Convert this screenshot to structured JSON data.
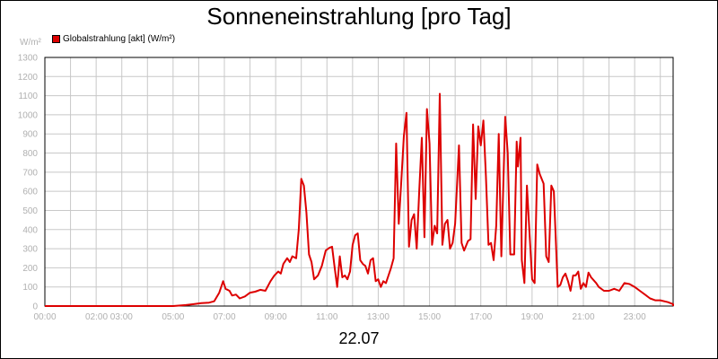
{
  "chart_data": {
    "type": "line",
    "title": "Sonneneinstrahlung [pro Tag]",
    "unit_label": "W/m²",
    "xlabel": "22.07",
    "ylabel": "",
    "ylim": [
      0,
      1300
    ],
    "yticks": [
      0,
      100,
      200,
      300,
      400,
      500,
      600,
      700,
      800,
      900,
      1000,
      1100,
      1200,
      1300
    ],
    "xlim": [
      0,
      24.5
    ],
    "xtick_labels": [
      "00:00",
      "02:00 03:00",
      "05:00",
      "07:00",
      "09:00",
      "11:00",
      "13:00",
      "15:00",
      "17:00",
      "19:00",
      "21:00",
      "23:00"
    ],
    "xtick_hours": [
      0,
      2.5,
      5,
      7,
      9,
      11,
      13,
      15,
      17,
      19,
      21,
      23
    ],
    "grid": true,
    "legend_position": "top-left",
    "series": [
      {
        "name": "Globalstrahlung [akt] (W/m²)",
        "color": "#dd0000",
        "points": [
          [
            0,
            0
          ],
          [
            5,
            0
          ],
          [
            5.5,
            5
          ],
          [
            5.8,
            10
          ],
          [
            6.1,
            15
          ],
          [
            6.4,
            18
          ],
          [
            6.6,
            25
          ],
          [
            6.8,
            70
          ],
          [
            6.95,
            130
          ],
          [
            7.05,
            90
          ],
          [
            7.2,
            80
          ],
          [
            7.3,
            55
          ],
          [
            7.45,
            60
          ],
          [
            7.6,
            40
          ],
          [
            7.8,
            50
          ],
          [
            8.0,
            70
          ],
          [
            8.2,
            75
          ],
          [
            8.4,
            85
          ],
          [
            8.6,
            80
          ],
          [
            8.8,
            130
          ],
          [
            8.95,
            160
          ],
          [
            9.1,
            180
          ],
          [
            9.2,
            170
          ],
          [
            9.3,
            220
          ],
          [
            9.45,
            250
          ],
          [
            9.55,
            230
          ],
          [
            9.65,
            260
          ],
          [
            9.8,
            250
          ],
          [
            9.9,
            400
          ],
          [
            10.0,
            665
          ],
          [
            10.1,
            630
          ],
          [
            10.2,
            490
          ],
          [
            10.3,
            270
          ],
          [
            10.4,
            230
          ],
          [
            10.5,
            140
          ],
          [
            10.65,
            160
          ],
          [
            10.8,
            210
          ],
          [
            10.95,
            290
          ],
          [
            11.1,
            305
          ],
          [
            11.2,
            310
          ],
          [
            11.3,
            200
          ],
          [
            11.4,
            100
          ],
          [
            11.5,
            260
          ],
          [
            11.6,
            150
          ],
          [
            11.7,
            160
          ],
          [
            11.8,
            140
          ],
          [
            11.9,
            180
          ],
          [
            12.0,
            320
          ],
          [
            12.1,
            370
          ],
          [
            12.2,
            380
          ],
          [
            12.3,
            240
          ],
          [
            12.4,
            220
          ],
          [
            12.5,
            210
          ],
          [
            12.6,
            170
          ],
          [
            12.7,
            240
          ],
          [
            12.8,
            250
          ],
          [
            12.9,
            130
          ],
          [
            13.0,
            140
          ],
          [
            13.1,
            100
          ],
          [
            13.2,
            130
          ],
          [
            13.3,
            120
          ],
          [
            13.5,
            200
          ],
          [
            13.6,
            250
          ],
          [
            13.7,
            850
          ],
          [
            13.8,
            430
          ],
          [
            13.9,
            650
          ],
          [
            14.0,
            890
          ],
          [
            14.1,
            1010
          ],
          [
            14.2,
            310
          ],
          [
            14.3,
            450
          ],
          [
            14.4,
            480
          ],
          [
            14.5,
            300
          ],
          [
            14.6,
            600
          ],
          [
            14.7,
            880
          ],
          [
            14.8,
            360
          ],
          [
            14.9,
            1030
          ],
          [
            15.0,
            850
          ],
          [
            15.1,
            320
          ],
          [
            15.2,
            420
          ],
          [
            15.3,
            380
          ],
          [
            15.4,
            1110
          ],
          [
            15.5,
            320
          ],
          [
            15.6,
            430
          ],
          [
            15.7,
            450
          ],
          [
            15.8,
            300
          ],
          [
            15.9,
            330
          ],
          [
            16.0,
            430
          ],
          [
            16.15,
            840
          ],
          [
            16.25,
            330
          ],
          [
            16.35,
            290
          ],
          [
            16.5,
            340
          ],
          [
            16.6,
            350
          ],
          [
            16.7,
            950
          ],
          [
            16.8,
            560
          ],
          [
            16.9,
            940
          ],
          [
            17.0,
            840
          ],
          [
            17.1,
            970
          ],
          [
            17.2,
            680
          ],
          [
            17.3,
            320
          ],
          [
            17.4,
            330
          ],
          [
            17.5,
            240
          ],
          [
            17.6,
            420
          ],
          [
            17.7,
            900
          ],
          [
            17.8,
            260
          ],
          [
            17.95,
            990
          ],
          [
            18.05,
            800
          ],
          [
            18.15,
            270
          ],
          [
            18.3,
            270
          ],
          [
            18.4,
            860
          ],
          [
            18.45,
            730
          ],
          [
            18.55,
            880
          ],
          [
            18.6,
            240
          ],
          [
            18.7,
            120
          ],
          [
            18.8,
            630
          ],
          [
            18.9,
            380
          ],
          [
            19.0,
            140
          ],
          [
            19.1,
            120
          ],
          [
            19.2,
            740
          ],
          [
            19.3,
            690
          ],
          [
            19.45,
            640
          ],
          [
            19.55,
            260
          ],
          [
            19.65,
            230
          ],
          [
            19.75,
            630
          ],
          [
            19.85,
            600
          ],
          [
            20.0,
            100
          ],
          [
            20.1,
            110
          ],
          [
            20.2,
            150
          ],
          [
            20.3,
            170
          ],
          [
            20.4,
            130
          ],
          [
            20.5,
            80
          ],
          [
            20.6,
            160
          ],
          [
            20.7,
            160
          ],
          [
            20.8,
            180
          ],
          [
            20.9,
            90
          ],
          [
            21.0,
            120
          ],
          [
            21.1,
            100
          ],
          [
            21.2,
            175
          ],
          [
            21.3,
            150
          ],
          [
            21.5,
            120
          ],
          [
            21.6,
            100
          ],
          [
            21.8,
            80
          ],
          [
            22.0,
            80
          ],
          [
            22.2,
            90
          ],
          [
            22.4,
            80
          ],
          [
            22.6,
            120
          ],
          [
            22.8,
            115
          ],
          [
            23.0,
            100
          ],
          [
            23.2,
            80
          ],
          [
            23.4,
            60
          ],
          [
            23.6,
            40
          ],
          [
            23.8,
            30
          ],
          [
            24.0,
            30
          ],
          [
            24.3,
            20
          ],
          [
            24.5,
            10
          ],
          [
            24.8,
            5
          ],
          [
            25.2,
            0
          ],
          [
            25.5,
            0
          ],
          [
            24.5,
            0
          ]
        ]
      }
    ]
  }
}
